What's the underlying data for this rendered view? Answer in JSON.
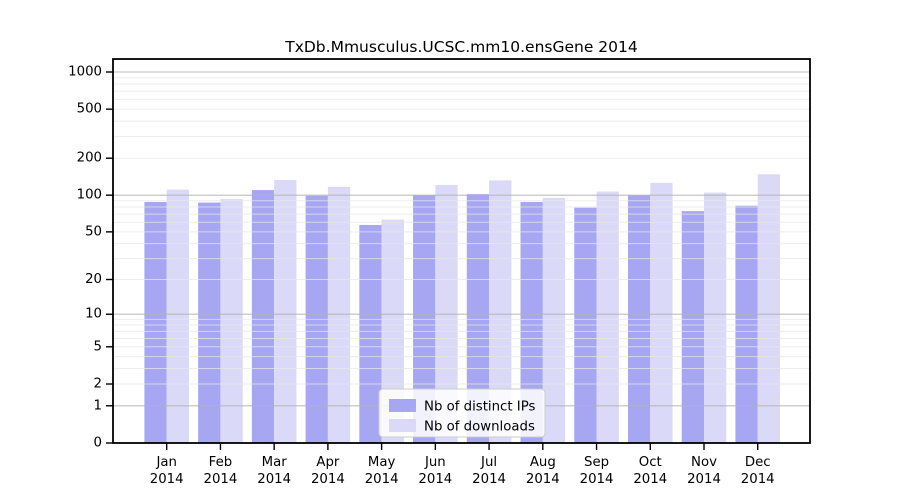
{
  "page": {
    "background": "#ffffff"
  },
  "chart_data": {
    "type": "bar",
    "title": "TxDb.Mmusculus.UCSC.mm10.ensGene 2014",
    "categories": [
      {
        "month": "Jan",
        "year": "2014"
      },
      {
        "month": "Feb",
        "year": "2014"
      },
      {
        "month": "Mar",
        "year": "2014"
      },
      {
        "month": "Apr",
        "year": "2014"
      },
      {
        "month": "May",
        "year": "2014"
      },
      {
        "month": "Jun",
        "year": "2014"
      },
      {
        "month": "Jul",
        "year": "2014"
      },
      {
        "month": "Aug",
        "year": "2014"
      },
      {
        "month": "Sep",
        "year": "2014"
      },
      {
        "month": "Oct",
        "year": "2014"
      },
      {
        "month": "Nov",
        "year": "2014"
      },
      {
        "month": "Dec",
        "year": "2014"
      }
    ],
    "series": [
      {
        "name": "Nb of distinct IPs",
        "color": "#a6a6f2",
        "values": [
          88,
          87,
          110,
          99,
          57,
          100,
          102,
          88,
          79,
          100,
          74,
          82
        ]
      },
      {
        "name": "Nb of downloads",
        "color": "#dadaf8",
        "values": [
          111,
          93,
          133,
          117,
          63,
          121,
          132,
          95,
          107,
          126,
          105,
          148
        ]
      }
    ],
    "y_ticks": [
      0,
      1,
      2,
      5,
      10,
      20,
      50,
      100,
      200,
      500,
      1000
    ],
    "y_scale": "log10(value+1)",
    "ylim": [
      0,
      1250
    ],
    "grid": true,
    "legend_position": "lower center",
    "axis_color": "#000000",
    "major_grid_color": "#b3b3b3",
    "minor_grid_color": "#e7e7e7",
    "legend_border_color": "#cccccc",
    "legend_background": "rgba(255,255,255,0.85)"
  }
}
